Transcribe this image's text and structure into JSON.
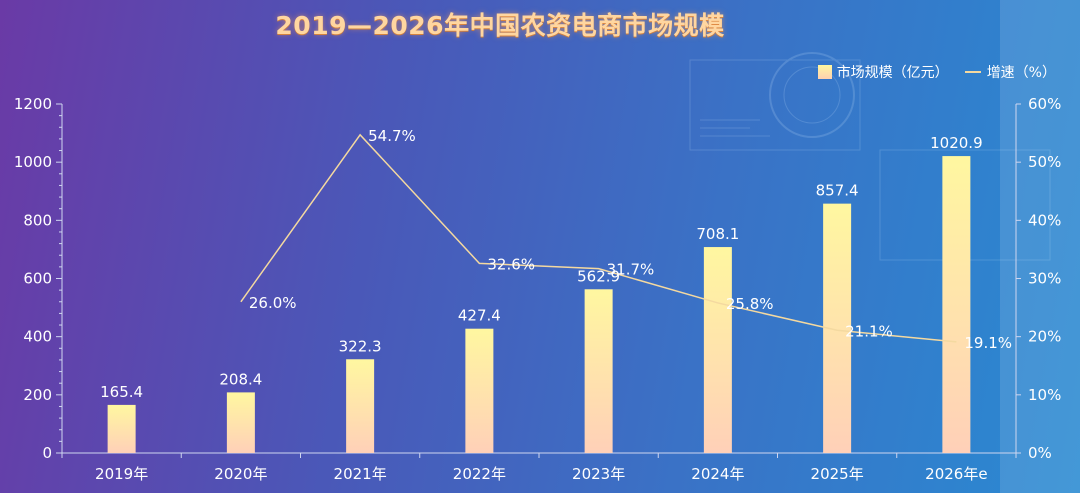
{
  "chart_data": {
    "type": "bar",
    "title": "2019—2026年中国农资电商市场规模",
    "categories": [
      "2019年",
      "2020年",
      "2021年",
      "2022年",
      "2023年",
      "2024年",
      "2025年",
      "2026年e"
    ],
    "series": [
      {
        "name": "市场规模（亿元）",
        "type": "bar",
        "axis": "left",
        "values": [
          165.4,
          208.4,
          322.3,
          427.4,
          562.9,
          708.1,
          857.4,
          1020.9
        ],
        "labels": [
          "165.4",
          "208.4",
          "322.3",
          "427.4",
          "562.9",
          "708.1",
          "857.4",
          "1020.9"
        ]
      },
      {
        "name": "增速（%）",
        "type": "line",
        "axis": "right",
        "values": [
          null,
          26.0,
          54.7,
          32.6,
          31.7,
          25.8,
          21.1,
          19.1
        ],
        "labels": [
          "",
          "26.0%",
          "54.7%",
          "32.6%",
          "31.7%",
          "25.8%",
          "21.1%",
          "19.1%"
        ]
      }
    ],
    "ylim_left": [
      0,
      1200
    ],
    "yticks_left": [
      "0",
      "200",
      "400",
      "600",
      "800",
      "1000",
      "1200"
    ],
    "ylim_right": [
      0,
      60
    ],
    "yticks_right": [
      "0%",
      "10%",
      "20%",
      "30%",
      "40%",
      "50%",
      "60%"
    ],
    "legend_position": "top-right",
    "grid": false,
    "colors": {
      "bar_top": "#fff7a0",
      "bar_bottom": "#ffd0b8",
      "line": "#f4d9a0",
      "text": "#ffffff",
      "title": "#ffd6a0"
    }
  }
}
